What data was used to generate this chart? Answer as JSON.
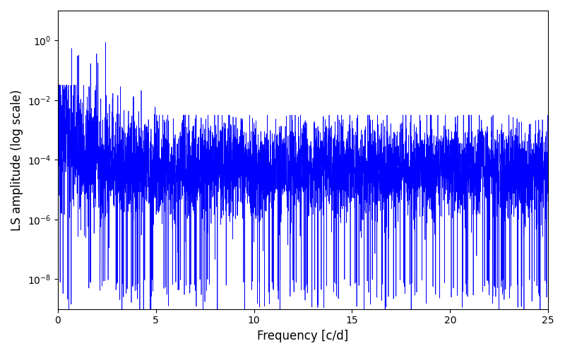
{
  "title": "",
  "xlabel": "Frequency [c/d]",
  "ylabel": "LS amplitude (log scale)",
  "xlim": [
    0,
    25
  ],
  "ylim_log": [
    1e-09,
    10
  ],
  "xfreq_max": 25,
  "n_points": 5000,
  "line_color": "#0000ff",
  "line_width": 0.5,
  "background_color": "#ffffff",
  "yscale": "log",
  "yticks": [
    1e-08,
    1e-06,
    0.0001,
    0.01,
    1.0
  ],
  "xticks": [
    0,
    5,
    10,
    15,
    20,
    25
  ],
  "seed": 12345
}
